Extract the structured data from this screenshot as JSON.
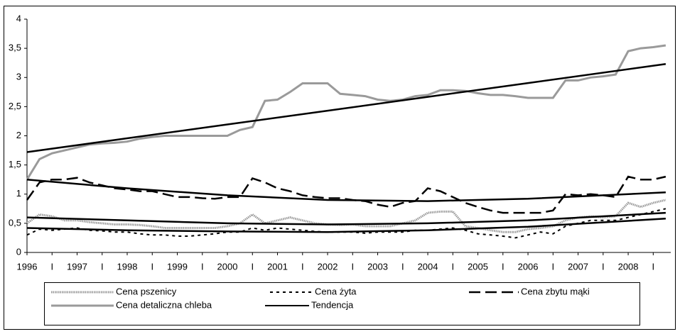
{
  "chart_data": {
    "type": "line",
    "x": [
      1996,
      1996.25,
      1996.5,
      1996.75,
      1997,
      1997.25,
      1997.5,
      1997.75,
      1998,
      1998.25,
      1998.5,
      1998.75,
      1999,
      1999.25,
      1999.5,
      1999.75,
      2000,
      2000.25,
      2000.5,
      2000.75,
      2001,
      2001.25,
      2001.5,
      2001.75,
      2002,
      2002.25,
      2002.5,
      2002.75,
      2003,
      2003.25,
      2003.5,
      2003.75,
      2004,
      2004.25,
      2004.5,
      2004.75,
      2005,
      2005.25,
      2005.5,
      2005.75,
      2006,
      2006.25,
      2006.5,
      2006.75,
      2007,
      2007.25,
      2007.5,
      2007.75,
      2008,
      2008.25,
      2008.5,
      2008.75
    ],
    "series": [
      {
        "name": "Cena pszenicy",
        "color": "#9a9a9a",
        "style": "dotted",
        "values": [
          0.5,
          0.65,
          0.62,
          0.55,
          0.55,
          0.52,
          0.5,
          0.48,
          0.48,
          0.47,
          0.45,
          0.42,
          0.42,
          0.42,
          0.42,
          0.42,
          0.45,
          0.5,
          0.65,
          0.5,
          0.55,
          0.6,
          0.55,
          0.5,
          0.48,
          0.47,
          0.48,
          0.45,
          0.45,
          0.45,
          0.5,
          0.55,
          0.68,
          0.7,
          0.7,
          0.45,
          0.42,
          0.38,
          0.35,
          0.35,
          0.4,
          0.42,
          0.45,
          0.55,
          0.6,
          0.62,
          0.6,
          0.62,
          0.85,
          0.78,
          0.85,
          0.9
        ]
      },
      {
        "name": "Cena żyta",
        "color": "#000000",
        "style": "dashed",
        "values": [
          0.3,
          0.4,
          0.38,
          0.4,
          0.42,
          0.38,
          0.37,
          0.35,
          0.35,
          0.32,
          0.3,
          0.3,
          0.28,
          0.28,
          0.3,
          0.32,
          0.35,
          0.35,
          0.42,
          0.38,
          0.42,
          0.4,
          0.38,
          0.36,
          0.35,
          0.35,
          0.35,
          0.33,
          0.35,
          0.35,
          0.35,
          0.38,
          0.38,
          0.4,
          0.42,
          0.38,
          0.32,
          0.3,
          0.28,
          0.25,
          0.3,
          0.35,
          0.32,
          0.45,
          0.5,
          0.55,
          0.55,
          0.55,
          0.6,
          0.65,
          0.7,
          0.75
        ]
      },
      {
        "name": "Cena zbytu mąki",
        "color": "#000000",
        "style": "long-dash",
        "values": [
          0.9,
          1.2,
          1.25,
          1.25,
          1.28,
          1.2,
          1.15,
          1.1,
          1.08,
          1.05,
          1.05,
          1.0,
          0.95,
          0.95,
          0.93,
          0.92,
          0.95,
          0.95,
          1.27,
          1.2,
          1.1,
          1.05,
          0.98,
          0.95,
          0.93,
          0.93,
          0.9,
          0.88,
          0.82,
          0.78,
          0.85,
          0.88,
          1.1,
          1.05,
          0.95,
          0.85,
          0.78,
          0.72,
          0.68,
          0.68,
          0.68,
          0.68,
          0.72,
          1.0,
          0.98,
          1.0,
          0.98,
          0.95,
          1.3,
          1.25,
          1.25,
          1.3
        ]
      },
      {
        "name": "Cena detaliczna chleba",
        "color": "#9a9a9a",
        "style": "solid",
        "values": [
          1.25,
          1.6,
          1.7,
          1.75,
          1.8,
          1.85,
          1.87,
          1.88,
          1.9,
          1.95,
          1.98,
          2.0,
          2.0,
          2.0,
          2.0,
          2.0,
          2.0,
          2.1,
          2.15,
          2.6,
          2.62,
          2.75,
          2.9,
          2.9,
          2.9,
          2.72,
          2.7,
          2.68,
          2.62,
          2.6,
          2.62,
          2.68,
          2.7,
          2.78,
          2.78,
          2.77,
          2.73,
          2.7,
          2.7,
          2.68,
          2.65,
          2.65,
          2.65,
          2.95,
          2.95,
          3.0,
          3.02,
          3.05,
          3.45,
          3.5,
          3.52,
          3.55
        ]
      }
    ],
    "trend": {
      "name": "Tendencja",
      "color": "#000000",
      "x": [
        1996,
        1998,
        2000,
        2002,
        2004,
        2006,
        2008.75
      ],
      "lines": [
        [
          1.72,
          1.957,
          2.194,
          2.431,
          2.667,
          2.904,
          3.23
        ],
        [
          1.25,
          1.1,
          0.98,
          0.9,
          0.88,
          0.92,
          1.03
        ],
        [
          0.6,
          0.55,
          0.5,
          0.48,
          0.5,
          0.55,
          0.68
        ],
        [
          0.42,
          0.38,
          0.36,
          0.35,
          0.38,
          0.44,
          0.58
        ]
      ]
    },
    "xlim": [
      1996,
      2008.85
    ],
    "xticks": [
      1996,
      {
        "value": 1996.5,
        "label": "I"
      },
      1997,
      {
        "value": 1997.5,
        "label": "I"
      },
      1998,
      {
        "value": 1998.5,
        "label": "I"
      },
      1999,
      {
        "value": 1999.5,
        "label": "I"
      },
      2000,
      {
        "value": 2000.5,
        "label": "I"
      },
      2001,
      {
        "value": 2001.5,
        "label": "I"
      },
      2002,
      {
        "value": 2002.5,
        "label": "I"
      },
      2003,
      {
        "value": 2003.5,
        "label": "I"
      },
      2004,
      {
        "value": 2004.5,
        "label": "I"
      },
      2005,
      {
        "value": 2005.5,
        "label": "I"
      },
      2006,
      {
        "value": 2006.5,
        "label": "I"
      },
      2007,
      {
        "value": 2007.5,
        "label": "I"
      },
      2008,
      {
        "value": 2008.5,
        "label": "I"
      }
    ],
    "ylim": [
      0,
      4
    ],
    "yticks": [
      0,
      {
        "value": 0.5,
        "label": "0,5"
      },
      1,
      {
        "value": 1.5,
        "label": "1,5"
      },
      2,
      {
        "value": 2.5,
        "label": "2,5"
      },
      3,
      {
        "value": 3.5,
        "label": "3,5"
      },
      4
    ],
    "grid": false
  }
}
